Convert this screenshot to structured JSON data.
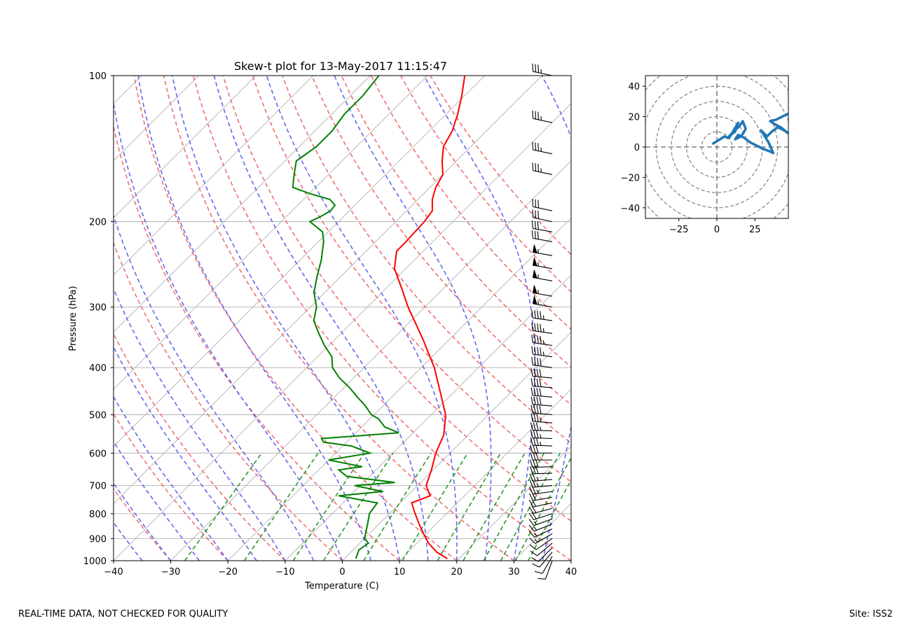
{
  "footer": {
    "left_text": "REAL-TIME DATA, NOT CHECKED FOR QUALITY",
    "right_text": "Site: ISS2"
  },
  "chart_data": [
    {
      "type": "line",
      "title": "Skew-t plot for 13-May-2017 11:15:47",
      "xlabel": "Temperature (C)",
      "ylabel": "Pressure (hPa)",
      "xlim": [
        -40,
        40
      ],
      "ylim": [
        1000,
        100
      ],
      "y_scale": "log",
      "xticks": [
        -40,
        -30,
        -20,
        -10,
        0,
        10,
        20,
        30,
        40
      ],
      "yticks": [
        1000,
        900,
        800,
        700,
        600,
        500,
        400,
        300,
        200,
        100
      ],
      "grid": true,
      "colors": {
        "temperature": "#ff0000",
        "dewpoint": "#008000",
        "dry_adiabat": "#f07070",
        "moist_adiabat": "#6666ee",
        "mixing_ratio": "#2a962a",
        "isotherm": "#b0b0b0"
      },
      "series": [
        {
          "role": "temperature",
          "pressure": [
            990,
            960,
            920,
            880,
            840,
            800,
            760,
            735,
            700,
            650,
            600,
            550,
            500,
            450,
            400,
            350,
            300,
            275,
            250,
            230,
            220,
            200,
            190,
            180,
            170,
            160,
            150,
            140,
            130,
            120,
            110,
            100
          ],
          "temp": [
            18,
            15,
            12,
            9.5,
            7,
            4.5,
            2,
            4,
            1.5,
            -0.3,
            -2.5,
            -4.3,
            -7.5,
            -12.3,
            -17.7,
            -24.6,
            -32.9,
            -37.2,
            -42,
            -44.7,
            -44.7,
            -45,
            -45.5,
            -47.5,
            -49,
            -50,
            -52.5,
            -54.8,
            -56,
            -58,
            -60.5,
            -63.5
          ]
        },
        {
          "role": "dewpoint",
          "pressure": [
            990,
            950,
            920,
            900,
            870,
            840,
            800,
            760,
            735,
            720,
            700,
            690,
            670,
            650,
            640,
            620,
            600,
            580,
            570,
            560,
            545,
            530,
            510,
            500,
            480,
            460,
            440,
            420,
            400,
            380,
            360,
            340,
            320,
            300,
            280,
            260,
            240,
            220,
            210,
            200,
            195,
            190,
            185,
            180,
            175,
            170,
            160,
            150,
            140,
            130,
            120,
            110,
            100
          ],
          "dewpoint": [
            2,
            1,
            1.5,
            0,
            -1,
            -2,
            -3.5,
            -4,
            -12,
            -5,
            -11,
            -4.5,
            -14,
            -16.5,
            -13,
            -20,
            -14,
            -18.5,
            -24,
            -25,
            -12.5,
            -16,
            -18.5,
            -20.5,
            -23,
            -26,
            -29,
            -32.5,
            -35.5,
            -37.5,
            -40.8,
            -43.9,
            -47,
            -48.9,
            -51.9,
            -54.1,
            -56.3,
            -59.1,
            -61,
            -65,
            -64,
            -63.3,
            -63.5,
            -65.4,
            -70,
            -74,
            -76,
            -78,
            -77,
            -77,
            -77.8,
            -77.8,
            -78.5
          ]
        }
      ],
      "wind": {
        "pressure": [
          1000,
          980,
          960,
          940,
          920,
          900,
          880,
          860,
          840,
          820,
          800,
          780,
          760,
          740,
          720,
          700,
          680,
          660,
          640,
          620,
          600,
          580,
          560,
          540,
          520,
          500,
          480,
          460,
          440,
          420,
          400,
          380,
          360,
          340,
          320,
          300,
          285,
          265,
          250,
          235,
          220,
          210,
          200,
          190,
          160,
          145,
          125,
          100
        ],
        "speed_kt": [
          10,
          10,
          10,
          10,
          10,
          10,
          15,
          15,
          15,
          15,
          20,
          20,
          20,
          20,
          25,
          25,
          25,
          30,
          30,
          30,
          30,
          35,
          35,
          35,
          35,
          40,
          40,
          40,
          40,
          40,
          40,
          45,
          45,
          45,
          45,
          55,
          55,
          55,
          55,
          55,
          30,
          30,
          30,
          30,
          35,
          35,
          35,
          35
        ],
        "direction_deg": [
          200,
          210,
          220,
          225,
          230,
          235,
          240,
          245,
          248,
          250,
          252,
          255,
          258,
          260,
          262,
          265,
          265,
          268,
          268,
          270,
          270,
          272,
          272,
          272,
          275,
          275,
          275,
          275,
          275,
          275,
          278,
          278,
          278,
          278,
          278,
          280,
          280,
          280,
          280,
          280,
          280,
          280,
          282,
          282,
          282,
          282,
          282,
          282
        ]
      }
    },
    {
      "type": "line",
      "title": "",
      "xlim": [
        -47,
        47
      ],
      "ylim": [
        -47,
        47
      ],
      "xticks": [
        -25,
        0,
        25
      ],
      "yticks": [
        -40,
        -20,
        0,
        20,
        40
      ],
      "rings": [
        10,
        20,
        30,
        40,
        50,
        60
      ],
      "color": "#1f77b4",
      "series": [
        {
          "u": [
            -3,
            2,
            5,
            7,
            9,
            12,
            14,
            11,
            8,
            10,
            15,
            17,
            19,
            16,
            12,
            14,
            18,
            22,
            26,
            30,
            35,
            37,
            34,
            29,
            33,
            36,
            40,
            44,
            47,
            42,
            38,
            35,
            39,
            43,
            47
          ],
          "v": [
            2,
            5,
            7,
            6,
            8,
            10,
            16,
            11,
            6,
            9,
            14,
            17,
            12,
            7,
            5,
            8,
            6,
            3,
            1,
            -1,
            -3,
            -4,
            3,
            11,
            7,
            10,
            13,
            11,
            9,
            13,
            15,
            17,
            18,
            20,
            22
          ]
        }
      ]
    }
  ]
}
